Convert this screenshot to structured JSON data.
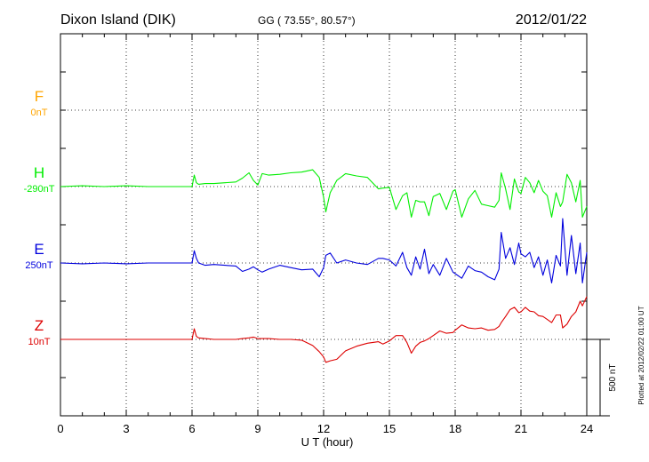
{
  "header": {
    "station": "Dixon Island (DIK)",
    "coords": "GG ( 73.55°,  80.57°)",
    "date": "2012/01/22"
  },
  "footer": {
    "plotted": "Plotted at 2012/02/22 01:00 UT"
  },
  "chart_data": {
    "type": "line",
    "xlabel": "U T (hour)",
    "xlim": [
      0,
      24
    ],
    "xticks": [
      0,
      3,
      6,
      9,
      12,
      15,
      18,
      21,
      24
    ],
    "grid": true,
    "scale_bar": {
      "label": "500 nT",
      "value_nT": 500
    },
    "series": [
      {
        "name": "F",
        "baseline": "0nT",
        "color": "#ffa500",
        "band": 0,
        "x": [],
        "y": []
      },
      {
        "name": "H",
        "baseline": "-290nT",
        "color": "#00ee00",
        "band": 1,
        "x": [
          0,
          1,
          2,
          3,
          4,
          5,
          6,
          6.1,
          6.2,
          6.3,
          6.6,
          7,
          7.5,
          8,
          8.3,
          8.6,
          8.8,
          9,
          9.2,
          9.5,
          10,
          10.5,
          11,
          11.5,
          11.8,
          12,
          12.1,
          12.3,
          12.6,
          13,
          13.5,
          14,
          14.5,
          14.7,
          15,
          15.3,
          15.6,
          15.8,
          16,
          16.2,
          16.4,
          16.6,
          16.8,
          17,
          17.3,
          17.6,
          17.9,
          18,
          18.3,
          18.6,
          18.9,
          19.2,
          19.5,
          19.8,
          20,
          20.1,
          20.3,
          20.5,
          20.7,
          20.9,
          21,
          21.2,
          21.4,
          21.6,
          21.8,
          22,
          22.2,
          22.4,
          22.6,
          22.8,
          22.9,
          23.1,
          23.3,
          23.5,
          23.7,
          23.8,
          24
        ],
        "y": [
          0,
          5,
          0,
          5,
          0,
          0,
          0,
          75,
          25,
          15,
          20,
          20,
          25,
          30,
          55,
          90,
          40,
          10,
          85,
          75,
          80,
          90,
          95,
          110,
          60,
          -70,
          -165,
          -40,
          40,
          85,
          70,
          60,
          -15,
          -10,
          -5,
          -150,
          -60,
          -40,
          -200,
          -90,
          -100,
          -100,
          -190,
          -65,
          -45,
          -150,
          -30,
          -20,
          -200,
          -80,
          -25,
          -115,
          -125,
          -135,
          -90,
          90,
          -15,
          -150,
          50,
          -35,
          -45,
          60,
          25,
          -40,
          40,
          -30,
          -60,
          -200,
          -40,
          -130,
          -100,
          80,
          25,
          -100,
          40,
          -200,
          -130
        ]
      },
      {
        "name": "E",
        "baseline": "250nT",
        "color": "#0000dd",
        "band": 2,
        "x": [
          0,
          1,
          2,
          3,
          4,
          5,
          6,
          6.1,
          6.2,
          6.3,
          6.6,
          7,
          7.5,
          8,
          8.3,
          8.6,
          8.8,
          9,
          9.2,
          9.5,
          10,
          10.5,
          11,
          11.5,
          11.8,
          12,
          12.1,
          12.3,
          12.6,
          13,
          13.5,
          14,
          14.5,
          14.7,
          15,
          15.3,
          15.6,
          15.8,
          16,
          16.2,
          16.4,
          16.6,
          16.8,
          17,
          17.3,
          17.6,
          17.9,
          18,
          18.3,
          18.6,
          18.9,
          19.2,
          19.5,
          19.8,
          20,
          20.1,
          20.3,
          20.5,
          20.7,
          20.9,
          21,
          21.2,
          21.4,
          21.6,
          21.8,
          22,
          22.2,
          22.4,
          22.6,
          22.8,
          22.9,
          23.1,
          23.3,
          23.5,
          23.7,
          23.8,
          24
        ],
        "y": [
          0,
          -5,
          0,
          -5,
          0,
          0,
          0,
          80,
          30,
          0,
          -15,
          -10,
          -15,
          -20,
          -55,
          -40,
          -25,
          -45,
          -60,
          -40,
          -15,
          -30,
          -45,
          -40,
          -90,
          -30,
          50,
          65,
          0,
          20,
          0,
          -10,
          30,
          30,
          20,
          -20,
          70,
          -30,
          -80,
          40,
          -40,
          90,
          -70,
          -10,
          -80,
          30,
          -60,
          -70,
          -100,
          -20,
          -50,
          -60,
          -90,
          -110,
          -40,
          200,
          30,
          100,
          -10,
          130,
          60,
          40,
          70,
          -30,
          40,
          -80,
          20,
          -130,
          50,
          -20,
          290,
          -80,
          180,
          -70,
          130,
          -130,
          70
        ]
      },
      {
        "name": "Z",
        "baseline": "10nT",
        "color": "#dd0000",
        "band": 3,
        "x": [
          0,
          1,
          2,
          3,
          4,
          5,
          6,
          6.1,
          6.2,
          6.3,
          6.6,
          7,
          7.5,
          8,
          8.3,
          8.6,
          8.8,
          9,
          9.2,
          9.5,
          10,
          10.5,
          11,
          11.5,
          11.8,
          12,
          12.1,
          12.3,
          12.6,
          13,
          13.5,
          14,
          14.5,
          14.7,
          15,
          15.3,
          15.6,
          15.8,
          16,
          16.2,
          16.4,
          16.6,
          16.8,
          17,
          17.3,
          17.6,
          17.9,
          18,
          18.3,
          18.6,
          18.9,
          19.2,
          19.5,
          19.8,
          20,
          20.1,
          20.3,
          20.5,
          20.7,
          20.9,
          21,
          21.2,
          21.4,
          21.6,
          21.8,
          22,
          22.2,
          22.4,
          22.6,
          22.8,
          22.9,
          23.1,
          23.3,
          23.5,
          23.7,
          23.8,
          24
        ],
        "y": [
          0,
          0,
          0,
          0,
          0,
          0,
          0,
          70,
          20,
          10,
          5,
          0,
          0,
          0,
          5,
          10,
          15,
          5,
          5,
          5,
          0,
          0,
          -5,
          -40,
          -80,
          -115,
          -150,
          -140,
          -130,
          -75,
          -45,
          -25,
          -15,
          -30,
          -10,
          25,
          25,
          -20,
          -90,
          -45,
          -20,
          -10,
          5,
          25,
          55,
          40,
          45,
          60,
          95,
          75,
          70,
          75,
          60,
          65,
          85,
          110,
          150,
          195,
          210,
          175,
          180,
          210,
          185,
          180,
          155,
          150,
          130,
          110,
          160,
          160,
          75,
          100,
          150,
          180,
          250,
          220,
          280
        ]
      }
    ]
  }
}
